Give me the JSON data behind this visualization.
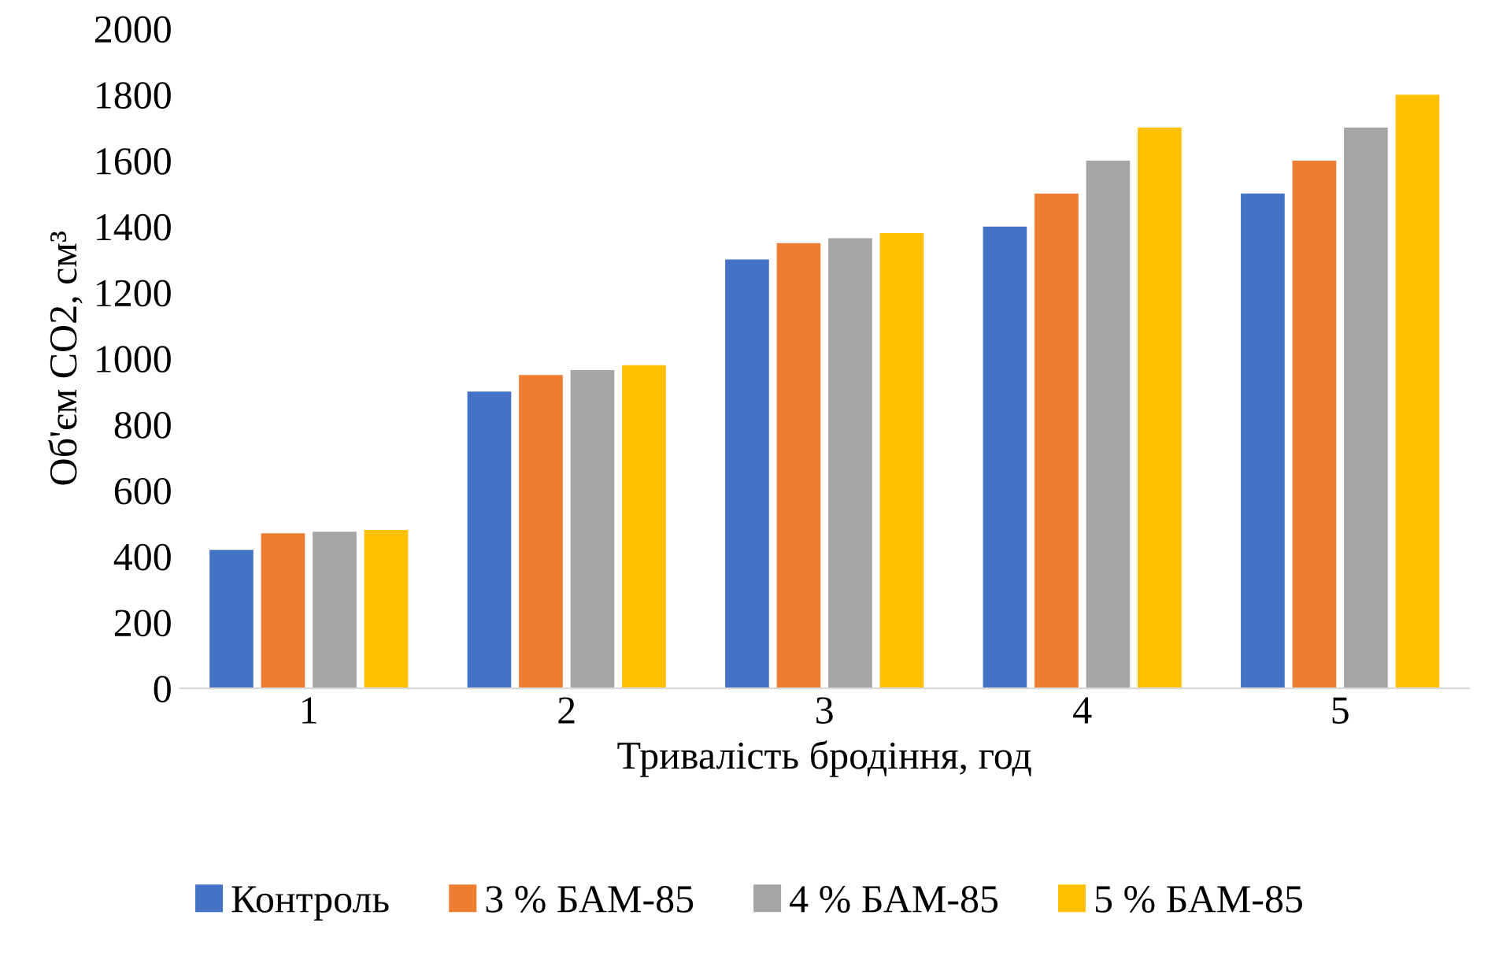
{
  "chart_data": {
    "type": "bar",
    "xlabel": "Тривалість бродіння, год",
    "ylabel": "Об'єм СО2, см³",
    "categories": [
      "1",
      "2",
      "3",
      "4",
      "5"
    ],
    "series": [
      {
        "name": "Контроль",
        "color": "#4472c4",
        "values": [
          420,
          900,
          1300,
          1400,
          1500
        ]
      },
      {
        "name": "3 % БАМ-85",
        "color": "#ed7d31",
        "values": [
          470,
          950,
          1350,
          1500,
          1600
        ]
      },
      {
        "name": "4 % БАМ-85",
        "color": "#a5a5a5",
        "values": [
          475,
          965,
          1365,
          1600,
          1700
        ]
      },
      {
        "name": "5 % БАМ-85",
        "color": "#ffc000",
        "values": [
          480,
          980,
          1380,
          1700,
          1800
        ]
      }
    ],
    "ylim": [
      0,
      2000
    ],
    "yticks": [
      0,
      200,
      400,
      600,
      800,
      1000,
      1200,
      1400,
      1600,
      1800,
      2000
    ],
    "legend": "bottom"
  }
}
